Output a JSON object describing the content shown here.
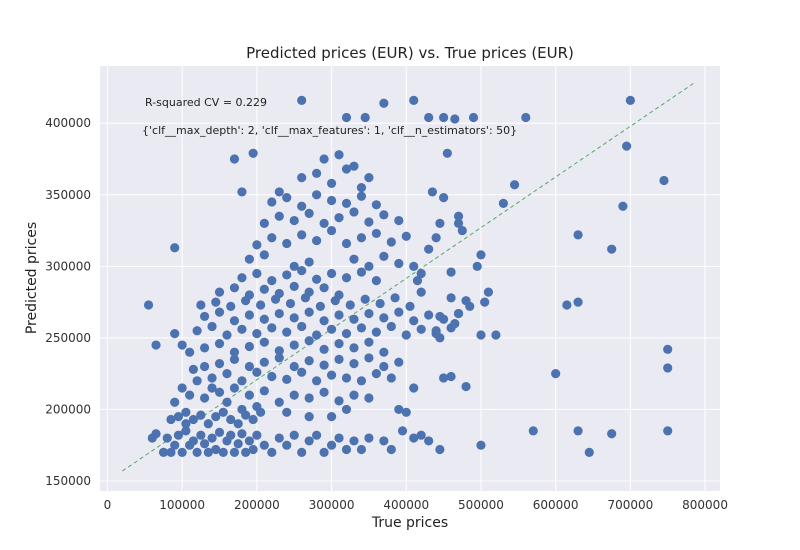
{
  "chart_data": {
    "type": "scatter",
    "title": "Predicted prices (EUR) vs. True prices (EUR)",
    "xlabel": "True prices",
    "ylabel": "Predicted prices",
    "xlim": [
      -10000,
      820000
    ],
    "ylim": [
      143000,
      440000
    ],
    "xticks": [
      0,
      100000,
      200000,
      300000,
      400000,
      500000,
      600000,
      700000,
      800000
    ],
    "yticks": [
      150000,
      200000,
      250000,
      300000,
      350000,
      400000
    ],
    "grid": true,
    "annotations": [
      "R-squared CV = 0.229",
      "{'clf__max_depth': 2, 'clf__max_features': 1, 'clf__n_estimators': 50}"
    ],
    "reference_line": {
      "x": [
        20000,
        785000
      ],
      "y": [
        157000,
        428000
      ],
      "color": "#55a868",
      "style": "dashed"
    },
    "colors": {
      "points": "#4c72b0",
      "background": "#eaeaf2",
      "grid": "#ffffff"
    },
    "points": [
      [
        55000,
        273000
      ],
      [
        65000,
        245000
      ],
      [
        60000,
        180000
      ],
      [
        65000,
        183000
      ],
      [
        85000,
        170000
      ],
      [
        90000,
        313000
      ],
      [
        90000,
        253000
      ],
      [
        100000,
        245000
      ],
      [
        75000,
        170000
      ],
      [
        80000,
        180000
      ],
      [
        90000,
        175000
      ],
      [
        95000,
        182000
      ],
      [
        100000,
        170000
      ],
      [
        105000,
        185000
      ],
      [
        110000,
        175000
      ],
      [
        115000,
        178000
      ],
      [
        120000,
        170000
      ],
      [
        125000,
        182000
      ],
      [
        130000,
        176000
      ],
      [
        135000,
        170000
      ],
      [
        140000,
        180000
      ],
      [
        145000,
        172000
      ],
      [
        150000,
        184000
      ],
      [
        155000,
        170000
      ],
      [
        160000,
        178000
      ],
      [
        165000,
        182000
      ],
      [
        170000,
        170000
      ],
      [
        175000,
        176000
      ],
      [
        180000,
        183000
      ],
      [
        185000,
        170000
      ],
      [
        190000,
        178000
      ],
      [
        195000,
        172000
      ],
      [
        200000,
        182000
      ],
      [
        210000,
        175000
      ],
      [
        220000,
        170000
      ],
      [
        230000,
        180000
      ],
      [
        240000,
        175000
      ],
      [
        250000,
        182000
      ],
      [
        260000,
        170000
      ],
      [
        270000,
        178000
      ],
      [
        280000,
        182000
      ],
      [
        290000,
        170000
      ],
      [
        300000,
        175000
      ],
      [
        310000,
        180000
      ],
      [
        320000,
        172000
      ],
      [
        330000,
        178000
      ],
      [
        85000,
        193000
      ],
      [
        95000,
        195000
      ],
      [
        105000,
        198000
      ],
      [
        115000,
        193000
      ],
      [
        125000,
        196000
      ],
      [
        135000,
        190000
      ],
      [
        145000,
        195000
      ],
      [
        155000,
        198000
      ],
      [
        165000,
        193000
      ],
      [
        175000,
        190000
      ],
      [
        185000,
        196000
      ],
      [
        195000,
        193000
      ],
      [
        205000,
        198000
      ],
      [
        90000,
        205000
      ],
      [
        110000,
        210000
      ],
      [
        130000,
        208000
      ],
      [
        150000,
        212000
      ],
      [
        170000,
        215000
      ],
      [
        190000,
        210000
      ],
      [
        210000,
        213000
      ],
      [
        230000,
        205000
      ],
      [
        250000,
        210000
      ],
      [
        270000,
        208000
      ],
      [
        290000,
        212000
      ],
      [
        310000,
        206000
      ],
      [
        330000,
        210000
      ],
      [
        350000,
        208000
      ],
      [
        120000,
        220000
      ],
      [
        140000,
        222000
      ],
      [
        160000,
        225000
      ],
      [
        180000,
        220000
      ],
      [
        200000,
        226000
      ],
      [
        220000,
        223000
      ],
      [
        240000,
        221000
      ],
      [
        260000,
        226000
      ],
      [
        280000,
        220000
      ],
      [
        300000,
        224000
      ],
      [
        320000,
        222000
      ],
      [
        340000,
        220000
      ],
      [
        360000,
        225000
      ],
      [
        380000,
        222000
      ],
      [
        130000,
        230000
      ],
      [
        150000,
        232000
      ],
      [
        170000,
        235000
      ],
      [
        190000,
        230000
      ],
      [
        210000,
        233000
      ],
      [
        230000,
        236000
      ],
      [
        250000,
        230000
      ],
      [
        270000,
        234000
      ],
      [
        290000,
        231000
      ],
      [
        310000,
        235000
      ],
      [
        330000,
        232000
      ],
      [
        350000,
        236000
      ],
      [
        370000,
        230000
      ],
      [
        390000,
        233000
      ],
      [
        110000,
        240000
      ],
      [
        130000,
        243000
      ],
      [
        150000,
        246000
      ],
      [
        170000,
        240000
      ],
      [
        190000,
        244000
      ],
      [
        210000,
        247000
      ],
      [
        230000,
        241000
      ],
      [
        250000,
        245000
      ],
      [
        270000,
        248000
      ],
      [
        290000,
        242000
      ],
      [
        310000,
        246000
      ],
      [
        330000,
        243000
      ],
      [
        350000,
        247000
      ],
      [
        370000,
        240000
      ],
      [
        120000,
        255000
      ],
      [
        140000,
        258000
      ],
      [
        160000,
        252000
      ],
      [
        180000,
        256000
      ],
      [
        200000,
        253000
      ],
      [
        220000,
        257000
      ],
      [
        240000,
        254000
      ],
      [
        260000,
        258000
      ],
      [
        280000,
        252000
      ],
      [
        300000,
        256000
      ],
      [
        320000,
        253000
      ],
      [
        340000,
        257000
      ],
      [
        360000,
        254000
      ],
      [
        380000,
        258000
      ],
      [
        400000,
        252000
      ],
      [
        420000,
        256000
      ],
      [
        440000,
        253000
      ],
      [
        460000,
        257000
      ],
      [
        130000,
        265000
      ],
      [
        150000,
        268000
      ],
      [
        170000,
        262000
      ],
      [
        190000,
        266000
      ],
      [
        210000,
        263000
      ],
      [
        230000,
        267000
      ],
      [
        250000,
        264000
      ],
      [
        270000,
        268000
      ],
      [
        290000,
        262000
      ],
      [
        310000,
        266000
      ],
      [
        330000,
        263000
      ],
      [
        350000,
        267000
      ],
      [
        370000,
        264000
      ],
      [
        390000,
        268000
      ],
      [
        410000,
        262000
      ],
      [
        430000,
        266000
      ],
      [
        450000,
        263000
      ],
      [
        470000,
        267000
      ],
      [
        125000,
        273000
      ],
      [
        145000,
        275000
      ],
      [
        165000,
        272000
      ],
      [
        185000,
        276000
      ],
      [
        205000,
        273000
      ],
      [
        225000,
        277000
      ],
      [
        245000,
        274000
      ],
      [
        265000,
        278000
      ],
      [
        285000,
        272000
      ],
      [
        305000,
        276000
      ],
      [
        325000,
        273000
      ],
      [
        345000,
        277000
      ],
      [
        365000,
        274000
      ],
      [
        385000,
        278000
      ],
      [
        405000,
        272000
      ],
      [
        150000,
        282000
      ],
      [
        170000,
        285000
      ],
      [
        190000,
        280000
      ],
      [
        210000,
        284000
      ],
      [
        230000,
        281000
      ],
      [
        250000,
        286000
      ],
      [
        270000,
        282000
      ],
      [
        290000,
        285000
      ],
      [
        310000,
        280000
      ],
      [
        180000,
        292000
      ],
      [
        200000,
        295000
      ],
      [
        220000,
        290000
      ],
      [
        240000,
        294000
      ],
      [
        260000,
        297000
      ],
      [
        280000,
        291000
      ],
      [
        300000,
        295000
      ],
      [
        320000,
        292000
      ],
      [
        340000,
        296000
      ],
      [
        360000,
        290000
      ],
      [
        190000,
        305000
      ],
      [
        210000,
        308000
      ],
      [
        250000,
        300000
      ],
      [
        270000,
        303000
      ],
      [
        330000,
        305000
      ],
      [
        350000,
        300000
      ],
      [
        370000,
        307000
      ],
      [
        390000,
        302000
      ],
      [
        410000,
        300000
      ],
      [
        200000,
        315000
      ],
      [
        220000,
        320000
      ],
      [
        240000,
        316000
      ],
      [
        260000,
        322000
      ],
      [
        280000,
        318000
      ],
      [
        300000,
        325000
      ],
      [
        320000,
        316000
      ],
      [
        340000,
        320000
      ],
      [
        360000,
        323000
      ],
      [
        380000,
        317000
      ],
      [
        400000,
        321000
      ],
      [
        210000,
        330000
      ],
      [
        230000,
        335000
      ],
      [
        250000,
        332000
      ],
      [
        270000,
        337000
      ],
      [
        290000,
        330000
      ],
      [
        310000,
        334000
      ],
      [
        330000,
        338000
      ],
      [
        350000,
        331000
      ],
      [
        370000,
        336000
      ],
      [
        390000,
        332000
      ],
      [
        220000,
        345000
      ],
      [
        240000,
        348000
      ],
      [
        260000,
        342000
      ],
      [
        280000,
        350000
      ],
      [
        300000,
        346000
      ],
      [
        320000,
        344000
      ],
      [
        340000,
        349000
      ],
      [
        360000,
        343000
      ],
      [
        180000,
        352000
      ],
      [
        230000,
        352000
      ],
      [
        260000,
        362000
      ],
      [
        280000,
        365000
      ],
      [
        300000,
        358000
      ],
      [
        320000,
        368000
      ],
      [
        340000,
        355000
      ],
      [
        170000,
        375000
      ],
      [
        195000,
        379000
      ],
      [
        290000,
        375000
      ],
      [
        310000,
        378000
      ],
      [
        330000,
        370000
      ],
      [
        350000,
        362000
      ],
      [
        260000,
        416000
      ],
      [
        320000,
        404000
      ],
      [
        345000,
        404000
      ],
      [
        370000,
        414000
      ],
      [
        410000,
        416000
      ],
      [
        430000,
        404000
      ],
      [
        450000,
        404000
      ],
      [
        465000,
        403000
      ],
      [
        490000,
        404000
      ],
      [
        560000,
        404000
      ],
      [
        455000,
        379000
      ],
      [
        435000,
        352000
      ],
      [
        450000,
        348000
      ],
      [
        470000,
        335000
      ],
      [
        445000,
        330000
      ],
      [
        470000,
        330000
      ],
      [
        475000,
        325000
      ],
      [
        440000,
        320000
      ],
      [
        430000,
        312000
      ],
      [
        460000,
        296000
      ],
      [
        500000,
        308000
      ],
      [
        495000,
        300000
      ],
      [
        420000,
        295000
      ],
      [
        415000,
        290000
      ],
      [
        420000,
        282000
      ],
      [
        460000,
        278000
      ],
      [
        480000,
        276000
      ],
      [
        470000,
        267000
      ],
      [
        485000,
        272000
      ],
      [
        445000,
        265000
      ],
      [
        440000,
        255000
      ],
      [
        465000,
        260000
      ],
      [
        445000,
        250000
      ],
      [
        505000,
        275000
      ],
      [
        510000,
        282000
      ],
      [
        530000,
        344000
      ],
      [
        545000,
        357000
      ],
      [
        500000,
        252000
      ],
      [
        520000,
        252000
      ],
      [
        450000,
        222000
      ],
      [
        460000,
        223000
      ],
      [
        480000,
        216000
      ],
      [
        410000,
        215000
      ],
      [
        390000,
        200000
      ],
      [
        400000,
        198000
      ],
      [
        395000,
        185000
      ],
      [
        420000,
        182000
      ],
      [
        410000,
        180000
      ],
      [
        430000,
        178000
      ],
      [
        370000,
        178000
      ],
      [
        380000,
        172000
      ],
      [
        350000,
        180000
      ],
      [
        340000,
        172000
      ],
      [
        445000,
        172000
      ],
      [
        500000,
        175000
      ],
      [
        570000,
        185000
      ],
      [
        600000,
        225000
      ],
      [
        615000,
        273000
      ],
      [
        630000,
        275000
      ],
      [
        630000,
        322000
      ],
      [
        645000,
        170000
      ],
      [
        675000,
        183000
      ],
      [
        630000,
        185000
      ],
      [
        675000,
        312000
      ],
      [
        690000,
        342000
      ],
      [
        695000,
        384000
      ],
      [
        700000,
        416000
      ],
      [
        745000,
        360000
      ],
      [
        750000,
        242000
      ],
      [
        750000,
        229000
      ],
      [
        750000,
        185000
      ],
      [
        100000,
        215000
      ],
      [
        105000,
        190000
      ],
      [
        115000,
        228000
      ],
      [
        140000,
        215000
      ],
      [
        160000,
        205000
      ],
      [
        180000,
        200000
      ],
      [
        200000,
        202000
      ],
      [
        240000,
        198000
      ],
      [
        270000,
        195000
      ],
      [
        300000,
        195000
      ],
      [
        320000,
        200000
      ]
    ]
  }
}
